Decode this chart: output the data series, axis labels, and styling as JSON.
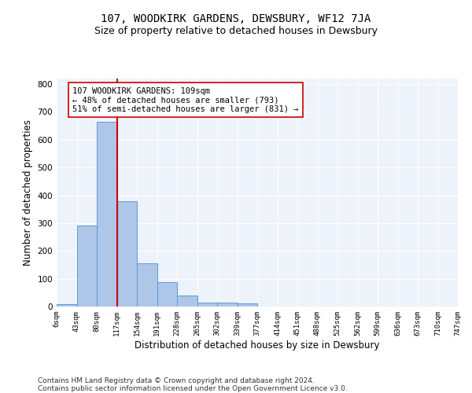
{
  "title": "107, WOODKIRK GARDENS, DEWSBURY, WF12 7JA",
  "subtitle": "Size of property relative to detached houses in Dewsbury",
  "xlabel": "Distribution of detached houses by size in Dewsbury",
  "ylabel": "Number of detached properties",
  "bar_values": [
    8,
    290,
    665,
    378,
    155,
    88,
    40,
    15,
    15,
    10,
    0,
    0,
    0,
    0,
    0,
    0,
    0,
    0,
    0,
    0
  ],
  "bar_labels": [
    "6sqm",
    "43sqm",
    "80sqm",
    "117sqm",
    "154sqm",
    "191sqm",
    "228sqm",
    "265sqm",
    "302sqm",
    "339sqm",
    "377sqm",
    "414sqm",
    "451sqm",
    "488sqm",
    "525sqm",
    "562sqm",
    "599sqm",
    "636sqm",
    "673sqm",
    "710sqm",
    "747sqm"
  ],
  "bar_color": "#aec6e8",
  "bar_edge_color": "#5b9bd5",
  "vline_x": 2.5,
  "vline_color": "#cc0000",
  "annotation_text": "107 WOODKIRK GARDENS: 109sqm\n← 48% of detached houses are smaller (793)\n51% of semi-detached houses are larger (831) →",
  "ylim": [
    0,
    820
  ],
  "yticks": [
    0,
    100,
    200,
    300,
    400,
    500,
    600,
    700,
    800
  ],
  "background_color": "#eef2fa",
  "grid_color": "#ffffff",
  "footer_line1": "Contains HM Land Registry data © Crown copyright and database right 2024.",
  "footer_line2": "Contains public sector information licensed under the Open Government Licence v3.0.",
  "title_fontsize": 10,
  "subtitle_fontsize": 9,
  "xlabel_fontsize": 8.5,
  "ylabel_fontsize": 8.5,
  "annotation_fontsize": 7.5,
  "footer_fontsize": 6.5
}
